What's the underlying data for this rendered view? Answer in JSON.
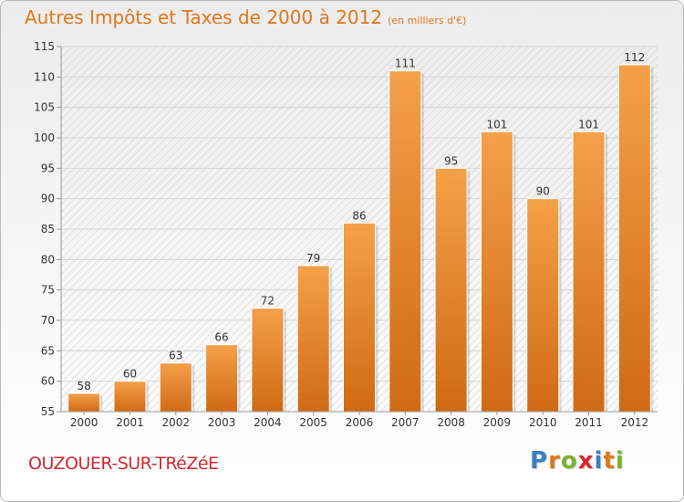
{
  "title": "Autres Impôts et Taxes de 2000 à 2012",
  "subtitle": "(en milliers d'€)",
  "commune": "OUZOUER-SUR-TRéZéE",
  "logo": {
    "text": "Proxiti",
    "letters": [
      {
        "char": "P",
        "color": "#3b7fc4"
      },
      {
        "char": "r",
        "color": "#e0771a"
      },
      {
        "char": "o",
        "color": "#7bb32e"
      },
      {
        "char": "x",
        "color": "#d6272f"
      },
      {
        "char": "i",
        "color": "#3b7fc4"
      },
      {
        "char": "t",
        "color": "#e0771a"
      },
      {
        "char": "i",
        "color": "#7bb32e"
      }
    ]
  },
  "colors": {
    "title": "#e0771a",
    "commune": "#d6272f",
    "bar_top": "#f5a04a",
    "bar_bottom": "#d06a14"
  },
  "chart_data": {
    "type": "bar",
    "categories": [
      "2000",
      "2001",
      "2002",
      "2003",
      "2004",
      "2005",
      "2006",
      "2007",
      "2008",
      "2009",
      "2010",
      "2011",
      "2012"
    ],
    "values": [
      58,
      60,
      63,
      66,
      72,
      79,
      86,
      111,
      95,
      101,
      90,
      101,
      112
    ],
    "ylim": [
      55,
      115
    ],
    "yticks": [
      55,
      60,
      65,
      70,
      75,
      80,
      85,
      90,
      95,
      100,
      105,
      110,
      115
    ],
    "grid": true,
    "data_labels": true
  }
}
